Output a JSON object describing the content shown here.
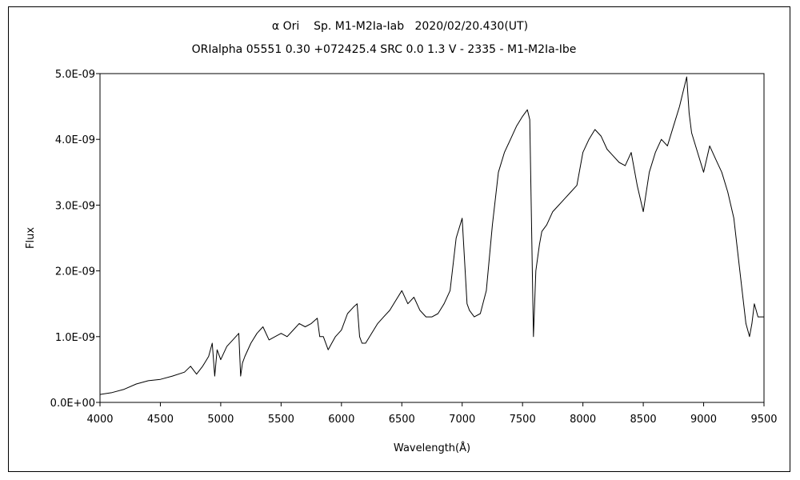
{
  "colors": {
    "background": "#ffffff",
    "line": "#000000",
    "frame": "#000000"
  },
  "chart_data": {
    "type": "line",
    "title": "α Ori    Sp. M1-M2Ia-Iab   2020/02/20.430(UT)",
    "subtitle": "ORIalpha 05551 0.30 +072425.4 SRC 0.0 1.3 V - 2335 - M1-M2Ia-Ibe",
    "xlabel": "Wavelength(Å)",
    "ylabel": "Flux",
    "xlim": [
      4000,
      9500
    ],
    "ylim": [
      0,
      5e-09
    ],
    "x_ticks": [
      4000,
      4500,
      5000,
      5500,
      6000,
      6500,
      7000,
      7500,
      8000,
      8500,
      9000,
      9500
    ],
    "x_tick_labels": [
      "4000",
      "4500",
      "5000",
      "5500",
      "6000",
      "6500",
      "7000",
      "7500",
      "8000",
      "8500",
      "9000",
      "9500"
    ],
    "y_ticks": [
      0,
      1e-09,
      2e-09,
      3e-09,
      4e-09,
      5e-09
    ],
    "y_tick_labels": [
      "0.0E+00",
      "1.0E-09",
      "2.0E-09",
      "3.0E-09",
      "4.0E-09",
      "5.0E-09"
    ],
    "grid": false,
    "legend": "none",
    "series": [
      {
        "x": [
          4000,
          4100,
          4200,
          4300,
          4400,
          4500,
          4600,
          4700,
          4750,
          4800,
          4850,
          4900,
          4930,
          4950,
          4970,
          5000,
          5050,
          5100,
          5150,
          5165,
          5180,
          5200,
          5250,
          5300,
          5350,
          5400,
          5450,
          5500,
          5550,
          5600,
          5650,
          5700,
          5750,
          5800,
          5820,
          5850,
          5890,
          5920,
          5950,
          6000,
          6050,
          6100,
          6130,
          6150,
          6170,
          6200,
          6250,
          6300,
          6350,
          6400,
          6450,
          6500,
          6550,
          6600,
          6650,
          6700,
          6750,
          6800,
          6850,
          6900,
          6950,
          7000,
          7040,
          7060,
          7100,
          7150,
          7200,
          7250,
          7300,
          7350,
          7400,
          7450,
          7500,
          7540,
          7560,
          7590,
          7610,
          7640,
          7660,
          7700,
          7750,
          7800,
          7850,
          7900,
          7950,
          8000,
          8050,
          8100,
          8150,
          8200,
          8250,
          8300,
          8350,
          8400,
          8450,
          8500,
          8550,
          8600,
          8650,
          8700,
          8750,
          8800,
          8840,
          8860,
          8880,
          8900,
          8950,
          9000,
          9050,
          9100,
          9150,
          9200,
          9250,
          9300,
          9350,
          9380,
          9400,
          9420,
          9450,
          9500
        ],
        "y": [
          1.2e-10,
          1.5e-10,
          2e-10,
          2.8e-10,
          3.3e-10,
          3.5e-10,
          4e-10,
          4.6e-10,
          5.5e-10,
          4.3e-10,
          5.5e-10,
          7e-10,
          9e-10,
          4e-10,
          8e-10,
          6.5e-10,
          8.5e-10,
          9.5e-10,
          1.05e-09,
          4e-10,
          6e-10,
          7e-10,
          9e-10,
          1.05e-09,
          1.15e-09,
          9.5e-10,
          1e-09,
          1.05e-09,
          1e-09,
          1.1e-09,
          1.2e-09,
          1.15e-09,
          1.2e-09,
          1.28e-09,
          1e-09,
          1e-09,
          8e-10,
          9e-10,
          1e-09,
          1.1e-09,
          1.35e-09,
          1.45e-09,
          1.5e-09,
          1e-09,
          9e-10,
          9e-10,
          1.05e-09,
          1.2e-09,
          1.3e-09,
          1.4e-09,
          1.55e-09,
          1.7e-09,
          1.5e-09,
          1.6e-09,
          1.4e-09,
          1.3e-09,
          1.3e-09,
          1.35e-09,
          1.5e-09,
          1.7e-09,
          2.5e-09,
          2.8e-09,
          1.5e-09,
          1.4e-09,
          1.3e-09,
          1.35e-09,
          1.7e-09,
          2.7e-09,
          3.5e-09,
          3.8e-09,
          4e-09,
          4.2e-09,
          4.35e-09,
          4.45e-09,
          4.3e-09,
          1e-09,
          2e-09,
          2.4e-09,
          2.6e-09,
          2.7e-09,
          2.9e-09,
          3e-09,
          3.1e-09,
          3.2e-09,
          3.3e-09,
          3.8e-09,
          4e-09,
          4.15e-09,
          4.05e-09,
          3.85e-09,
          3.75e-09,
          3.65e-09,
          3.6e-09,
          3.8e-09,
          3.3e-09,
          2.9e-09,
          3.5e-09,
          3.8e-09,
          4e-09,
          3.9e-09,
          4.2e-09,
          4.5e-09,
          4.8e-09,
          4.95e-09,
          4.4e-09,
          4.1e-09,
          3.8e-09,
          3.5e-09,
          3.9e-09,
          3.7e-09,
          3.5e-09,
          3.2e-09,
          2.8e-09,
          2e-09,
          1.2e-09,
          1e-09,
          1.2e-09,
          1.5e-09,
          1.3e-09,
          1.3e-09
        ]
      }
    ]
  }
}
